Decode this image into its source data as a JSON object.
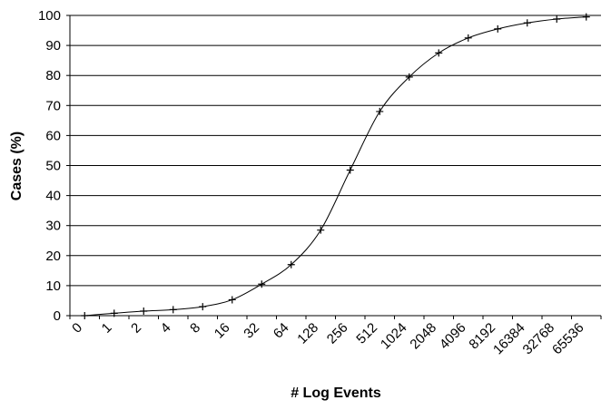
{
  "chart_data": {
    "type": "line",
    "x_label": "# Log Events",
    "y_label": "Cases (%)",
    "categories": [
      "0",
      "1",
      "2",
      "4",
      "8",
      "16",
      "32",
      "64",
      "128",
      "256",
      "512",
      "1024",
      "2048",
      "4096",
      "8192",
      "16384",
      "32768",
      "65536"
    ],
    "values": [
      0,
      0.8,
      1.5,
      2,
      3,
      5.3,
      10.5,
      17,
      28.5,
      48.5,
      68,
      79.5,
      87.5,
      92.5,
      95.5,
      97.5,
      98.8,
      99.5
    ],
    "color": "#000000",
    "ylim": [
      0,
      100
    ],
    "yticks": [
      0,
      10,
      20,
      30,
      40,
      50,
      60,
      70,
      80,
      90,
      100
    ],
    "grid": true
  }
}
